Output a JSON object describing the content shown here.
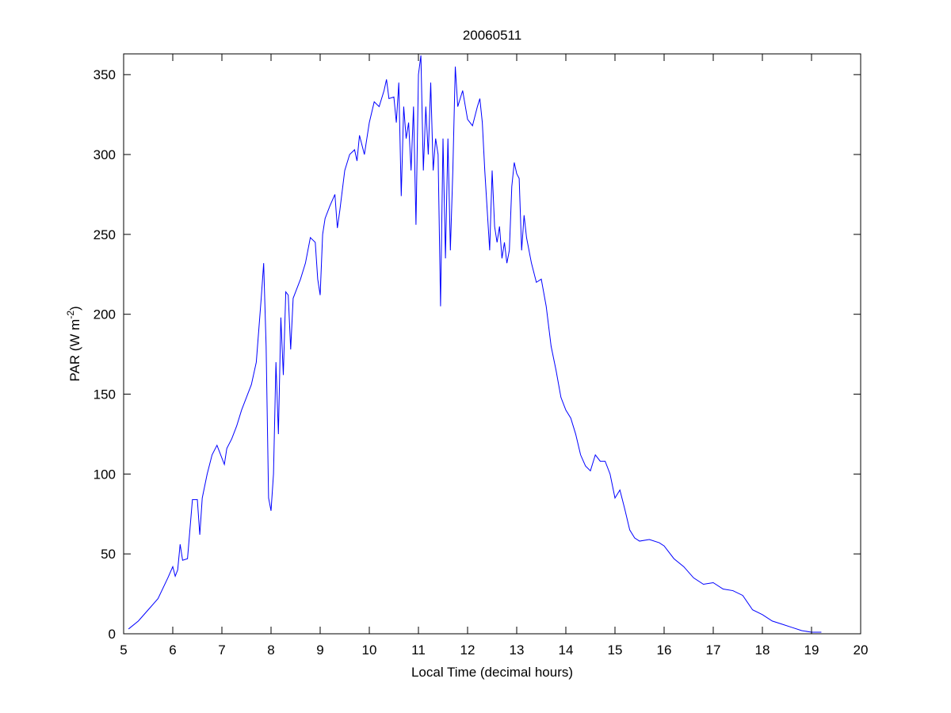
{
  "chart_data": {
    "type": "line",
    "title": "20060511",
    "xlabel": "Local Time (decimal hours)",
    "ylabel": {
      "text": "PAR (W m",
      "superscript": "-2",
      "suffix": ")"
    },
    "color": "#0000ff",
    "xlim": [
      5,
      20
    ],
    "xticks": [
      5,
      6,
      7,
      8,
      9,
      10,
      11,
      12,
      13,
      14,
      15,
      16,
      17,
      18,
      19,
      20
    ],
    "ylim": [
      0,
      363
    ],
    "yticks": [
      0,
      50,
      100,
      150,
      200,
      250,
      300,
      350
    ],
    "x": [
      5.1,
      5.3,
      5.5,
      5.7,
      5.9,
      6.0,
      6.05,
      6.1,
      6.15,
      6.2,
      6.3,
      6.4,
      6.5,
      6.55,
      6.6,
      6.7,
      6.8,
      6.9,
      7.0,
      7.05,
      7.1,
      7.2,
      7.3,
      7.4,
      7.5,
      7.6,
      7.7,
      7.8,
      7.85,
      7.9,
      7.95,
      8.0,
      8.05,
      8.1,
      8.15,
      8.2,
      8.25,
      8.3,
      8.35,
      8.4,
      8.45,
      8.5,
      8.6,
      8.7,
      8.8,
      8.9,
      8.95,
      9.0,
      9.05,
      9.1,
      9.2,
      9.3,
      9.35,
      9.4,
      9.5,
      9.6,
      9.7,
      9.75,
      9.8,
      9.9,
      10.0,
      10.1,
      10.2,
      10.3,
      10.35,
      10.4,
      10.5,
      10.55,
      10.6,
      10.65,
      10.7,
      10.75,
      10.8,
      10.85,
      10.9,
      10.95,
      11.0,
      11.05,
      11.1,
      11.15,
      11.2,
      11.25,
      11.3,
      11.35,
      11.4,
      11.45,
      11.5,
      11.55,
      11.6,
      11.65,
      11.7,
      11.75,
      11.8,
      11.9,
      12.0,
      12.1,
      12.2,
      12.25,
      12.3,
      12.35,
      12.4,
      12.45,
      12.5,
      12.55,
      12.6,
      12.65,
      12.7,
      12.75,
      12.8,
      12.85,
      12.9,
      12.95,
      13.0,
      13.05,
      13.1,
      13.15,
      13.2,
      13.3,
      13.4,
      13.5,
      13.6,
      13.7,
      13.8,
      13.9,
      14.0,
      14.1,
      14.2,
      14.3,
      14.4,
      14.5,
      14.6,
      14.7,
      14.8,
      14.9,
      15.0,
      15.1,
      15.2,
      15.3,
      15.4,
      15.5,
      15.7,
      15.9,
      16.0,
      16.2,
      16.4,
      16.6,
      16.8,
      17.0,
      17.2,
      17.4,
      17.6,
      17.8,
      18.0,
      18.2,
      18.4,
      18.6,
      18.8,
      19.0,
      19.2
    ],
    "values": [
      3,
      8,
      15,
      22,
      35,
      42,
      36,
      40,
      56,
      46,
      47,
      84,
      84,
      62,
      85,
      100,
      112,
      118,
      110,
      106,
      116,
      122,
      130,
      140,
      148,
      156,
      170,
      210,
      232,
      180,
      85,
      77,
      100,
      170,
      125,
      198,
      162,
      214,
      212,
      178,
      210,
      214,
      222,
      232,
      248,
      245,
      222,
      212,
      250,
      260,
      268,
      275,
      254,
      265,
      290,
      300,
      303,
      296,
      312,
      300,
      320,
      333,
      330,
      340,
      347,
      335,
      336,
      320,
      345,
      274,
      330,
      310,
      320,
      290,
      330,
      256,
      350,
      362,
      290,
      330,
      300,
      345,
      290,
      310,
      300,
      205,
      310,
      235,
      310,
      240,
      290,
      355,
      330,
      340,
      322,
      318,
      330,
      335,
      320,
      290,
      265,
      240,
      290,
      255,
      245,
      255,
      235,
      245,
      232,
      240,
      280,
      295,
      288,
      285,
      240,
      262,
      248,
      232,
      220,
      222,
      205,
      180,
      165,
      148,
      140,
      135,
      125,
      112,
      105,
      102,
      112,
      108,
      108,
      100,
      85,
      90,
      78,
      65,
      60,
      58,
      59,
      57,
      55,
      47,
      42,
      35,
      31,
      32,
      28,
      27,
      24,
      15,
      12,
      8,
      6,
      4,
      2,
      1,
      1
    ]
  }
}
